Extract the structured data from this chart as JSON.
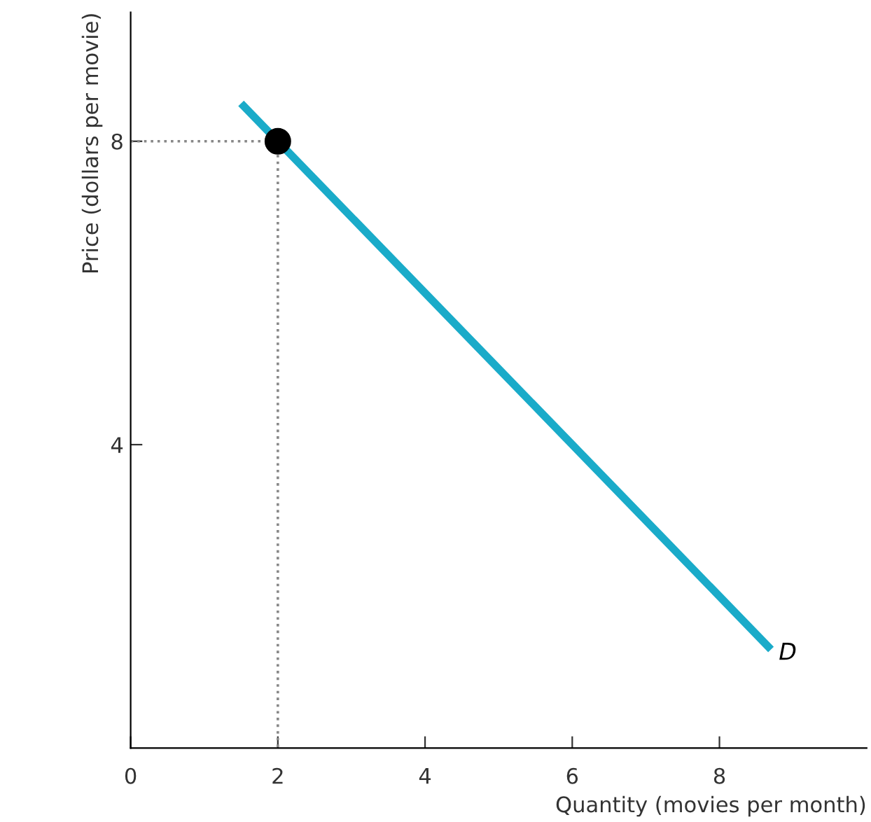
{
  "chart_data": {
    "type": "line",
    "xlabel": "Quantity (movies per month)",
    "ylabel": "Price (dollars per movie)",
    "xlim": [
      0,
      10
    ],
    "ylim": [
      0,
      9.7
    ],
    "xticks": [
      0,
      2,
      4,
      6,
      8
    ],
    "yticks": [
      4,
      8
    ],
    "grid": false,
    "legend": false,
    "series": [
      {
        "color": "#1aabc9",
        "line_style": "solid",
        "marker": "none",
        "x": [
          1.5,
          8.7
        ],
        "values": [
          8.5,
          1.3
        ]
      },
      {
        "type": "line",
        "color": "#888888",
        "line_style": "dotted",
        "marker": "none",
        "x": [
          0,
          2,
          2
        ],
        "values": [
          8,
          8,
          0
        ]
      },
      {
        "type": "scatter",
        "color": "#000000",
        "marker": "circle",
        "x": [
          2
        ],
        "values": [
          8
        ]
      }
    ],
    "annotations": [
      {
        "text": "D",
        "x": 8.7,
        "y": 1.3
      }
    ]
  }
}
